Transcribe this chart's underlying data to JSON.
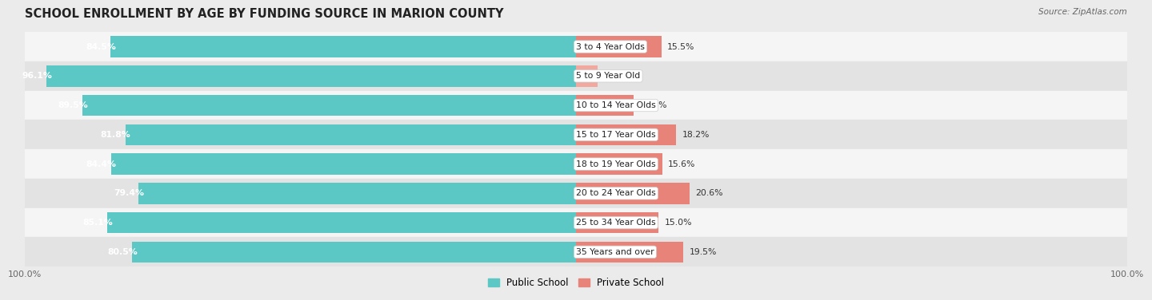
{
  "title": "SCHOOL ENROLLMENT BY AGE BY FUNDING SOURCE IN MARION COUNTY",
  "source": "Source: ZipAtlas.com",
  "categories": [
    "3 to 4 Year Olds",
    "5 to 9 Year Old",
    "10 to 14 Year Olds",
    "15 to 17 Year Olds",
    "18 to 19 Year Olds",
    "20 to 24 Year Olds",
    "25 to 34 Year Olds",
    "35 Years and over"
  ],
  "public_values": [
    84.5,
    96.1,
    89.5,
    81.8,
    84.4,
    79.4,
    85.1,
    80.5
  ],
  "private_values": [
    15.5,
    3.9,
    10.5,
    18.2,
    15.6,
    20.6,
    15.0,
    19.5
  ],
  "public_color": "#5BC8C5",
  "private_color": "#E8837A",
  "private_color_light": "#F0A89F",
  "background_color": "#ebebeb",
  "row_bg_light": "#f5f5f5",
  "row_bg_dark": "#e3e3e3",
  "title_fontsize": 10.5,
  "bar_height": 0.72,
  "max_val": 100,
  "left_axis_pct": "100.0%",
  "right_axis_pct": "100.0%"
}
